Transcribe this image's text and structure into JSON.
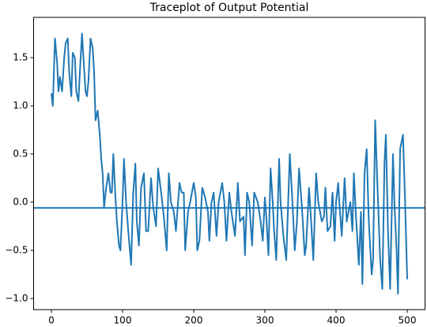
{
  "chart_data": {
    "type": "line",
    "title": "Traceplot of Output Potential",
    "x": [
      0,
      2,
      5,
      8,
      10,
      12,
      15,
      18,
      20,
      23,
      25,
      28,
      30,
      33,
      35,
      38,
      40,
      43,
      45,
      48,
      50,
      52,
      55,
      58,
      60,
      62,
      65,
      68,
      70,
      72,
      74,
      77,
      80,
      83,
      85,
      87,
      90,
      92,
      95,
      97,
      100,
      102,
      105,
      108,
      112,
      115,
      118,
      120,
      123,
      126,
      130,
      133,
      136,
      140,
      143,
      147,
      150,
      155,
      158,
      162,
      165,
      168,
      172,
      175,
      180,
      183,
      186,
      188,
      192,
      195,
      200,
      203,
      205,
      208,
      212,
      216,
      220,
      222,
      225,
      228,
      232,
      235,
      240,
      243,
      246,
      250,
      253,
      258,
      262,
      265,
      270,
      272,
      275,
      278,
      282,
      285,
      290,
      294,
      297,
      300,
      302,
      305,
      308,
      311,
      313,
      316,
      320,
      322,
      326,
      330,
      335,
      338,
      342,
      345,
      348,
      352,
      356,
      358,
      362,
      365,
      368,
      372,
      375,
      380,
      383,
      385,
      388,
      392,
      395,
      398,
      400,
      403,
      405,
      408,
      412,
      415,
      420,
      423,
      425,
      428,
      432,
      435,
      437,
      440,
      443,
      446,
      450,
      452,
      455,
      458,
      462,
      465,
      468,
      470,
      473,
      476,
      480,
      482,
      485,
      487,
      490,
      494,
      497,
      500
    ],
    "series": [
      {
        "color": "#1f77b4",
        "values": [
          1.13,
          1.0,
          1.7,
          1.45,
          1.15,
          1.3,
          1.15,
          1.5,
          1.65,
          1.7,
          1.35,
          1.1,
          1.55,
          1.5,
          1.15,
          1.05,
          1.35,
          1.75,
          1.5,
          1.15,
          1.1,
          1.25,
          1.7,
          1.6,
          1.35,
          0.85,
          0.95,
          0.7,
          0.45,
          0.3,
          -0.05,
          0.15,
          0.3,
          0.1,
          0.1,
          0.5,
          0.05,
          -0.2,
          -0.45,
          -0.5,
          0.0,
          0.45,
          0.0,
          -0.3,
          -0.65,
          0.1,
          0.4,
          -0.2,
          -0.45,
          0.15,
          0.3,
          -0.3,
          -0.3,
          0.25,
          -0.05,
          -0.25,
          0.35,
          0.05,
          -0.15,
          -0.5,
          0.3,
          0.0,
          -0.1,
          -0.3,
          0.2,
          0.1,
          0.1,
          -0.5,
          -0.1,
          0.0,
          0.2,
          0.05,
          -0.5,
          -0.4,
          0.15,
          0.05,
          -0.1,
          -0.4,
          0.0,
          0.1,
          -0.35,
          0.0,
          0.2,
          0.0,
          -0.4,
          0.1,
          -0.1,
          -0.35,
          0.2,
          -0.2,
          -0.15,
          -0.55,
          0.1,
          0.0,
          -0.45,
          0.1,
          0.0,
          -0.2,
          -0.4,
          0.05,
          -0.15,
          -0.55,
          0.35,
          0.0,
          -0.3,
          -0.6,
          0.45,
          0.0,
          -0.35,
          -0.6,
          0.5,
          0.1,
          -0.5,
          -0.2,
          0.35,
          -0.05,
          -0.55,
          -0.45,
          0.15,
          -0.2,
          -0.6,
          0.3,
          0.0,
          -0.2,
          -0.15,
          0.15,
          -0.3,
          -0.25,
          0.1,
          -0.4,
          0.0,
          0.2,
          -0.05,
          -0.35,
          0.25,
          -0.2,
          0.0,
          -0.3,
          0.3,
          -0.15,
          -0.65,
          -0.1,
          -0.85,
          0.3,
          0.55,
          -0.2,
          -0.75,
          -0.6,
          0.85,
          0.2,
          -0.6,
          -0.9,
          0.4,
          0.7,
          -0.3,
          -0.9,
          0.5,
          0.0,
          -0.5,
          -0.95,
          0.55,
          0.7,
          0.0,
          -0.8
        ]
      }
    ],
    "hline": -0.06,
    "xlim": [
      -25,
      525
    ],
    "xticks": [
      0,
      100,
      200,
      300,
      400,
      500
    ],
    "ylim": [
      -1.115,
      1.918
    ],
    "yticks": [
      {
        "value": -1,
        "label": "−1.0"
      },
      {
        "value": -0.5,
        "label": "−0.5"
      },
      {
        "value": 0,
        "label": "0.0"
      },
      0.5,
      {
        "value": 1,
        "label": "1.0"
      },
      1.5
    ]
  }
}
